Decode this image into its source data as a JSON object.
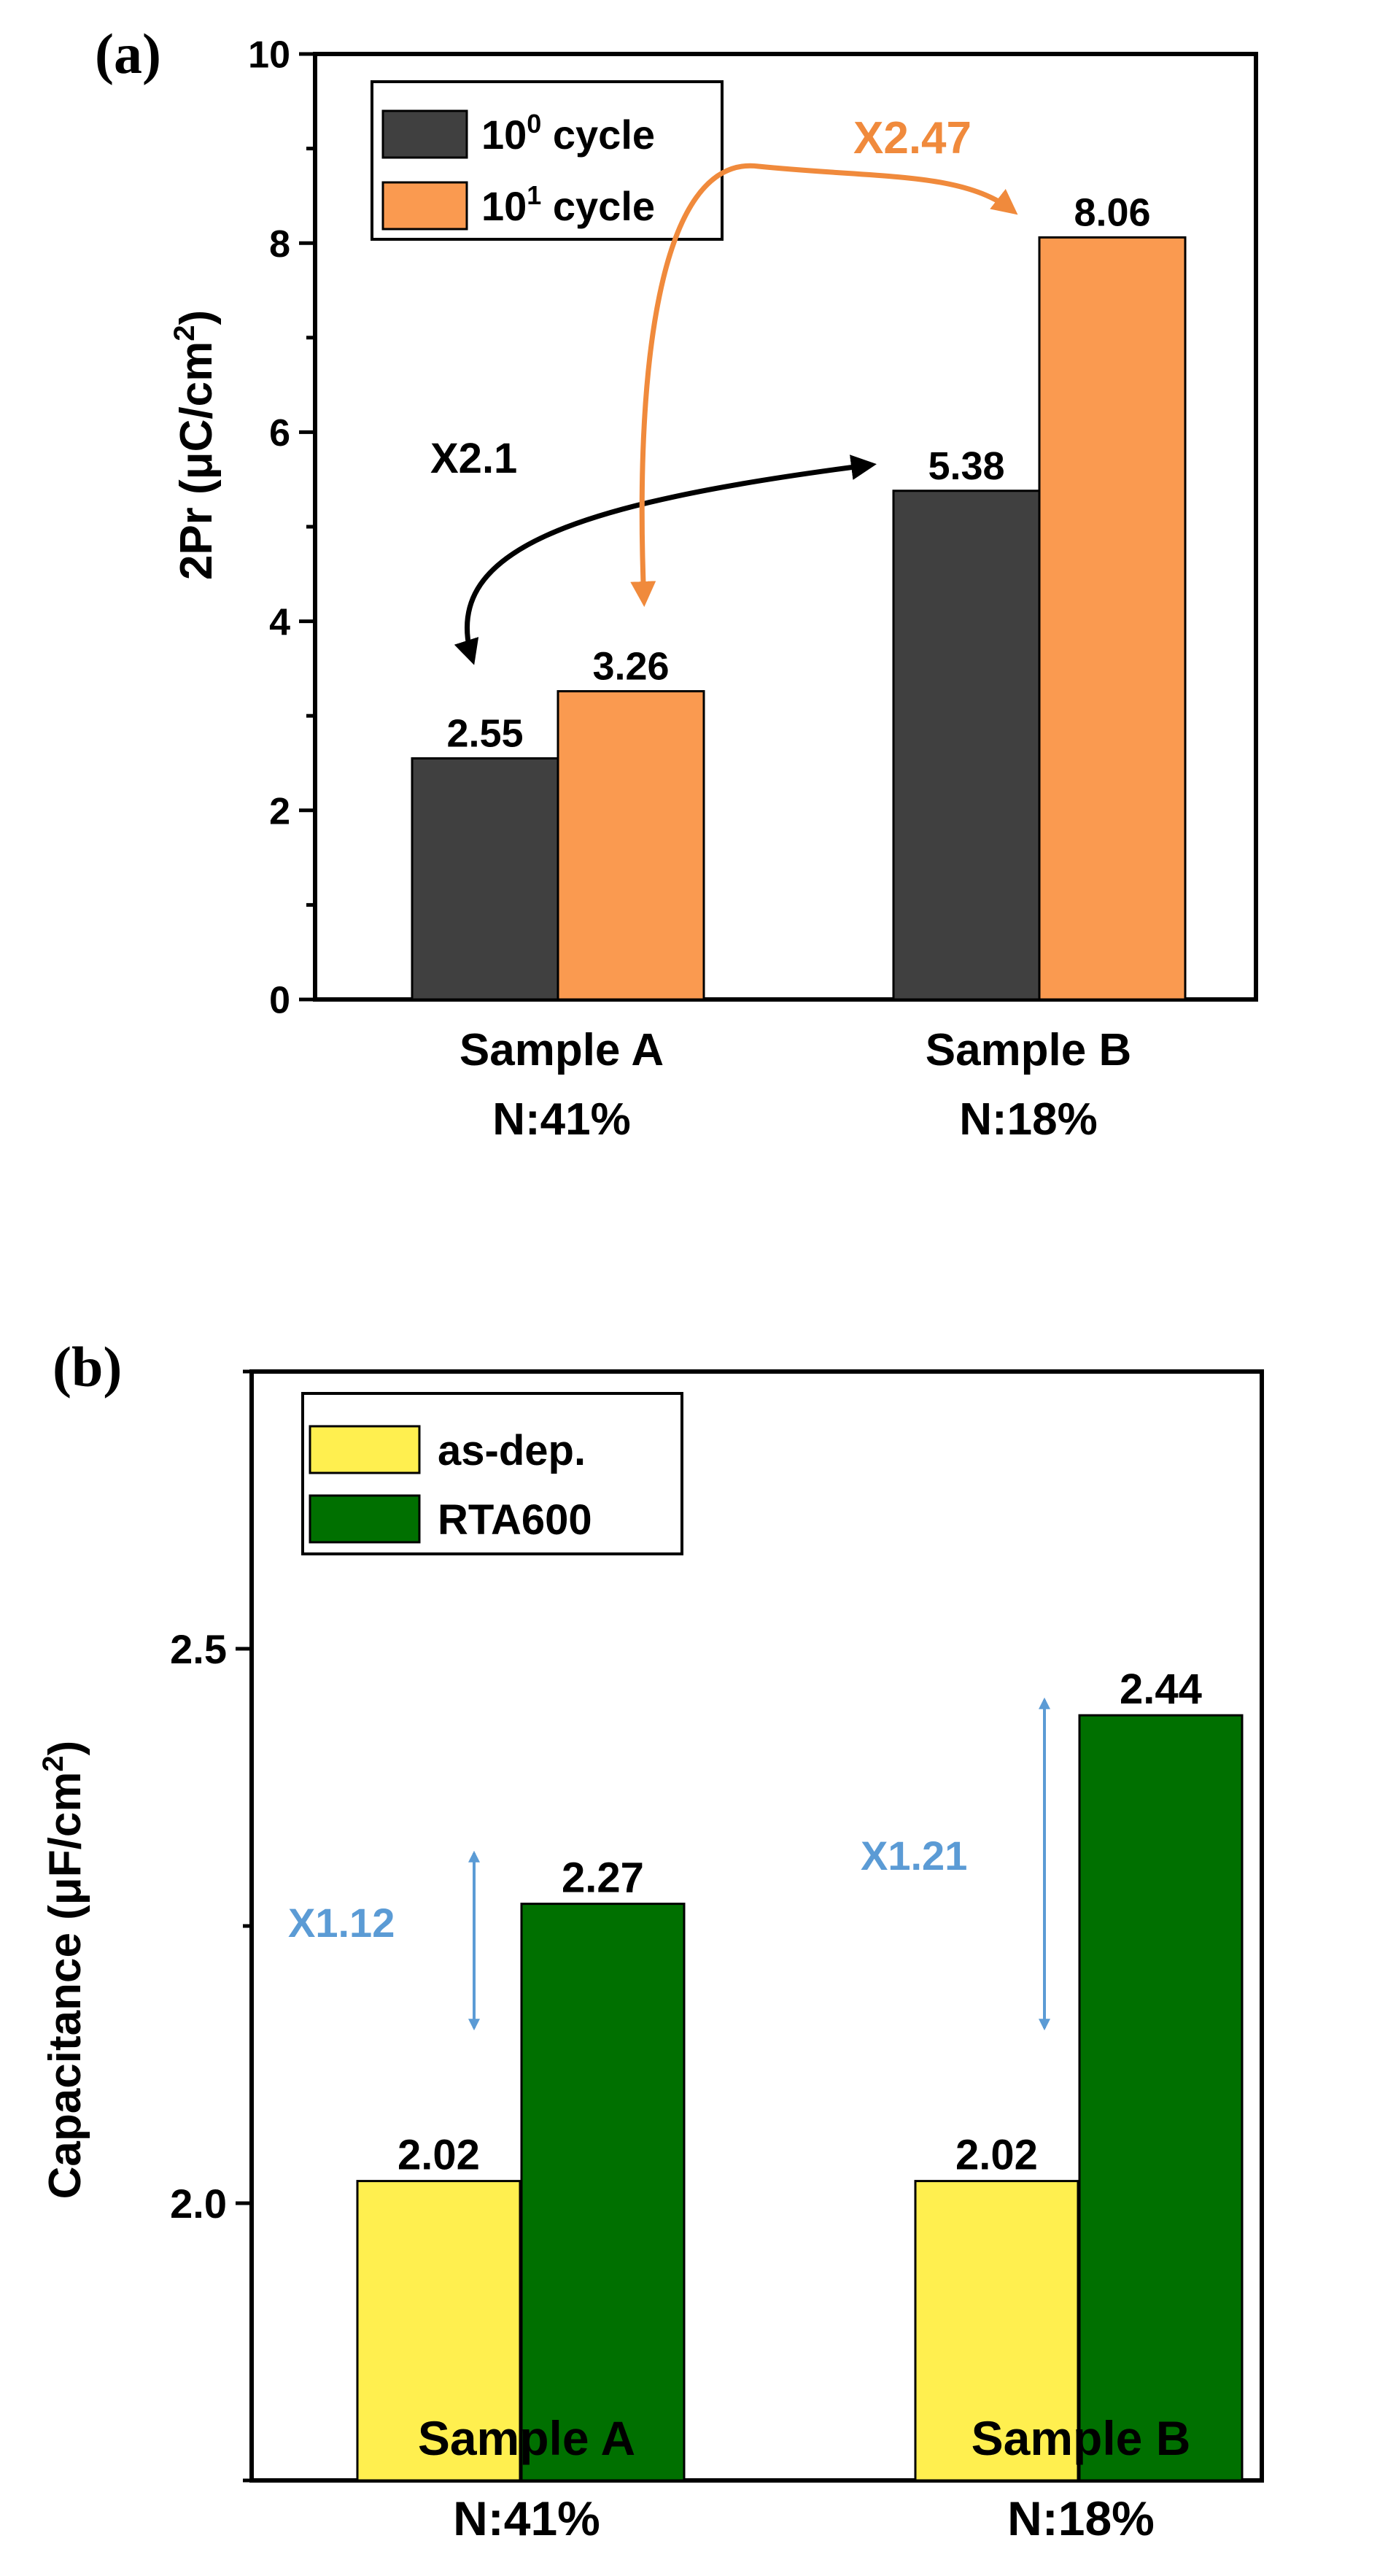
{
  "chart_data": [
    {
      "panel_label": "(a)",
      "type": "bar",
      "ylabel_main": "2Pr (μC/cm",
      "ylabel_sup": "2",
      "ylabel_close": ")",
      "ylim": [
        0,
        10
      ],
      "yticks": [
        0,
        2,
        4,
        6,
        8,
        10
      ],
      "categories": [
        {
          "label": "Sample A",
          "sublabel": "N:41%"
        },
        {
          "label": "Sample B",
          "sublabel": "N:18%"
        }
      ],
      "series": [
        {
          "legend_base": "10",
          "legend_sup": "0",
          "legend_suffix": " cycle",
          "color": "#404040",
          "values": [
            2.55,
            5.38
          ],
          "labels": [
            "2.55",
            "5.38"
          ]
        },
        {
          "legend_base": "10",
          "legend_sup": "1",
          "legend_suffix": " cycle",
          "color": "#fa9a50",
          "values": [
            3.26,
            8.06
          ],
          "labels": [
            "3.26",
            "8.06"
          ]
        }
      ],
      "legend": "top-left",
      "grid": false,
      "annotations": [
        {
          "text": "X2.1",
          "color": "#000000"
        },
        {
          "text": "X2.47",
          "color": "#f08a3c"
        }
      ]
    },
    {
      "panel_label": "(b)",
      "type": "bar",
      "ylabel_main": "Capacitance (μF/cm",
      "ylabel_sup": "2",
      "ylabel_close": ")",
      "ylim": [
        1.75,
        2.75
      ],
      "yticks": [
        2.0,
        2.5
      ],
      "ytick_labels": [
        "2.0",
        "2.5"
      ],
      "categories": [
        {
          "label": "Sample A",
          "sublabel": "N:41%"
        },
        {
          "label": "Sample B",
          "sublabel": "N:18%"
        }
      ],
      "series": [
        {
          "name": "as-dep.",
          "color": "#ffef4f",
          "values": [
            2.02,
            2.02
          ],
          "labels": [
            "2.02",
            "2.02"
          ]
        },
        {
          "name": "RTA600",
          "color": "#007000",
          "values": [
            2.27,
            2.44
          ],
          "labels": [
            "2.27",
            "2.44"
          ]
        }
      ],
      "legend": "top-left",
      "grid": false,
      "annotations": [
        {
          "text": "X1.12",
          "color": "#5b9bd5"
        },
        {
          "text": "X1.21",
          "color": "#5b9bd5"
        }
      ]
    }
  ]
}
